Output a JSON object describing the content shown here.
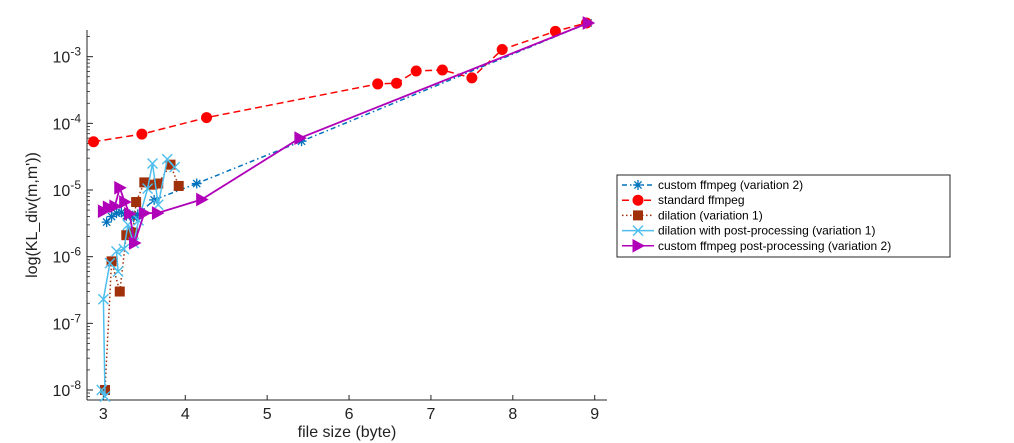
{
  "chart_data": {
    "type": "line",
    "title": "",
    "xlabel": "file size (byte)",
    "ylabel": "log(KL_div(m,m'))",
    "yscale": "log",
    "xlim": [
      2.8,
      9.15
    ],
    "ylim_exponent": [
      -8.15,
      -2.6
    ],
    "x_ticks": [
      3,
      4,
      5,
      6,
      7,
      8,
      9
    ],
    "y_ticks": [
      {
        "base": "10",
        "exp": "-8",
        "value": -8
      },
      {
        "base": "10",
        "exp": "-7",
        "value": -7
      },
      {
        "base": "10",
        "exp": "-6",
        "value": -6
      },
      {
        "base": "10",
        "exp": "-5",
        "value": -5
      },
      {
        "base": "10",
        "exp": "-4",
        "value": -4
      },
      {
        "base": "10",
        "exp": "-3",
        "value": -3
      }
    ],
    "grid": false,
    "legend_position": "outside-right",
    "series": [
      {
        "name": "custom ffmpeg (variation 2)",
        "color": "#0072bd",
        "dash": "5,3,1.5,3",
        "marker": "asterisk",
        "points": [
          [
            3.04,
            3.3e-06
          ],
          [
            3.1,
            4e-06
          ],
          [
            3.16,
            4.5e-06
          ],
          [
            3.22,
            4.6e-06
          ],
          [
            3.28,
            4.1e-06
          ],
          [
            3.32,
            4.3e-06
          ],
          [
            3.37,
            3.9e-06
          ],
          [
            3.42,
            4.3e-06
          ],
          [
            3.62,
            7.1e-06
          ],
          [
            4.14,
            1.25e-05
          ],
          [
            5.42,
            5.4e-05
          ],
          [
            8.92,
            0.0032
          ]
        ]
      },
      {
        "name": "standard ffmpeg",
        "color": "#ff0000",
        "dash": "7,4",
        "marker": "circle",
        "points": [
          [
            2.88,
            5.3e-05
          ],
          [
            3.47,
            6.9e-05
          ],
          [
            4.26,
            0.000122
          ],
          [
            6.35,
            0.00039
          ],
          [
            6.58,
            0.0004
          ],
          [
            6.82,
            0.00061
          ],
          [
            7.14,
            0.00063
          ],
          [
            7.5,
            0.00048
          ],
          [
            7.87,
            0.00128
          ],
          [
            8.52,
            0.0024
          ],
          [
            8.9,
            0.0032
          ]
        ]
      },
      {
        "name": "dilation (variation 1)",
        "color": "#a0300a",
        "dash": "1.5,2.5",
        "marker": "square",
        "points": [
          [
            3.02,
            1e-08
          ],
          [
            3.1,
            8.5e-07
          ],
          [
            3.2,
            3e-07
          ],
          [
            3.28,
            2.1e-06
          ],
          [
            3.36,
            2.3e-06
          ],
          [
            3.4,
            6.6e-06
          ],
          [
            3.5,
            1.3e-05
          ],
          [
            3.6,
            1.2e-05
          ],
          [
            3.67,
            1.25e-05
          ],
          [
            3.82,
            2.4e-05
          ],
          [
            3.92,
            1.15e-05
          ]
        ]
      },
      {
        "name": "dilation with post-processing (variation 1)",
        "color": "#4dbeee",
        "dash": "",
        "marker": "x",
        "points": [
          [
            2.98,
            1e-08
          ],
          [
            3.02,
            8e-09
          ],
          [
            3.0,
            2.3e-07
          ],
          [
            3.08,
            8e-07
          ],
          [
            3.18,
            6e-07
          ],
          [
            3.16,
            1.2e-06
          ],
          [
            3.25,
            1.3e-06
          ],
          [
            3.3,
            3e-06
          ],
          [
            3.37,
            1.6e-06
          ],
          [
            3.43,
            3.5e-06
          ],
          [
            3.54,
            1.05e-05
          ],
          [
            3.6,
            2.5e-05
          ],
          [
            3.67,
            6e-06
          ],
          [
            3.78,
            2.9e-05
          ],
          [
            3.87,
            2.2e-05
          ]
        ]
      },
      {
        "name": "custom ffmpeg post-processing (variation 2)",
        "color": "#b000b8",
        "dash": "",
        "marker": "triangle-right",
        "points": [
          [
            3.0,
            4.8e-06
          ],
          [
            3.06,
            5.5e-06
          ],
          [
            3.14,
            5.7e-06
          ],
          [
            3.2,
            1.08e-05
          ],
          [
            3.26,
            6.6e-06
          ],
          [
            3.32,
            4.4e-06
          ],
          [
            3.38,
            1.6e-06
          ],
          [
            3.5,
            4.5e-06
          ],
          [
            3.66,
            4.5e-06
          ],
          [
            4.2,
            7.2e-06
          ],
          [
            5.4,
            6e-05
          ],
          [
            8.92,
            0.0032
          ]
        ]
      }
    ]
  }
}
